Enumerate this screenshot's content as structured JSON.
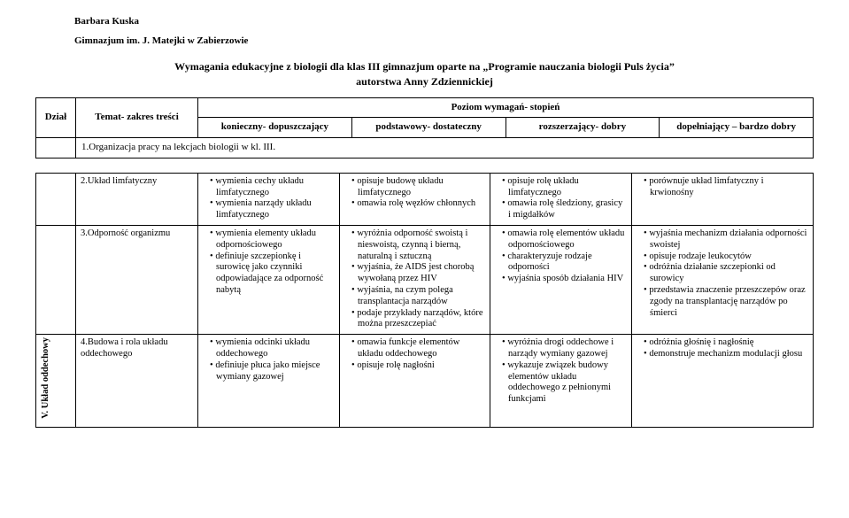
{
  "author": "Barbara Kuska",
  "school": "Gimnazjum im. J. Matejki w Zabierzowie",
  "title_line1": "Wymagania edukacyjne z biologii dla klas III gimnazjum oparte na „Programie nauczania biologii Puls życia”",
  "title_line2": "autorstwa Anny Zdziennickiej",
  "head": {
    "dzial": "Dział",
    "temat": "Temat- zakres treści",
    "poziom": "Poziom wymagań- stopień",
    "lvl1": "konieczny- dopuszczający",
    "lvl2": "podstawowy- dostateczny",
    "lvl3": "rozszerzający- dobry",
    "lvl4": "dopełniający – bardzo dobry",
    "org": "1.Organizacja pracy na lekcjach biologii w kl. III."
  },
  "section_label": "V. Układ oddechowy",
  "rows": [
    {
      "temat": "2.Układ limfatyczny",
      "c1": [
        "wymienia cechy układu limfatycznego",
        "wymienia narządy układu limfatycznego"
      ],
      "c2": [
        "opisuje budowę układu limfatycznego",
        "omawia rolę węzłów chłonnych"
      ],
      "c3": [
        "opisuje rolę układu limfatycznego",
        "omawia rolę śledziony, grasicy i migdałków"
      ],
      "c4": [
        "porównuje układ limfatyczny i krwionośny"
      ]
    },
    {
      "temat": "3.Odporność organizmu",
      "c1": [
        "wymienia elementy układu odpornościowego",
        "definiuje szczepionkę i surowicę jako czynniki odpowiadające za odporność nabytą"
      ],
      "c2": [
        "wyróżnia odporność swoistą i nieswoistą, czynną i bierną, naturalną i sztuczną",
        "wyjaśnia, że AIDS jest chorobą wywołaną przez HIV",
        "wyjaśnia, na czym polega transplantacja narządów",
        "podaje przykłady narządów, które można przeszczepiać"
      ],
      "c3": [
        "omawia rolę elementów układu odpornościowego",
        "charakteryzuje rodzaje odporności",
        "wyjaśnia sposób działania HIV"
      ],
      "c4": [
        "wyjaśnia mechanizm działania odporności swoistej",
        "opisuje rodzaje leukocytów",
        "odróżnia działanie szczepionki od surowicy",
        "przedstawia znaczenie przeszczepów oraz zgody na transplantację narządów po śmierci"
      ]
    },
    {
      "temat": "4.Budowa i rola układu oddechowego",
      "c1": [
        "wymienia odcinki układu oddechowego",
        "definiuje płuca jako miejsce wymiany gazowej"
      ],
      "c2": [
        "omawia funkcje elementów układu oddechowego",
        "opisuje rolę nagłośni"
      ],
      "c3": [
        "wyróżnia drogi oddechowe i narządy wymiany gazowej",
        "wykazuje związek budowy elementów układu oddechowego z pełnionymi funkcjami"
      ],
      "c4": [
        "odróżnia głośnię i nagłośnię",
        "demonstruje mechanizm modulacji głosu"
      ]
    }
  ]
}
